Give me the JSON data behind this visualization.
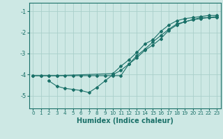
{
  "xlabel": "Humidex (Indice chaleur)",
  "ylabel": "",
  "bg_color": "#cde8e4",
  "grid_color": "#aacfca",
  "line_color": "#1a7068",
  "xlim": [
    -0.5,
    23.5
  ],
  "ylim": [
    -5.6,
    -0.6
  ],
  "xticks": [
    0,
    1,
    2,
    3,
    4,
    5,
    6,
    7,
    8,
    9,
    10,
    11,
    12,
    13,
    14,
    15,
    16,
    17,
    18,
    19,
    20,
    21,
    22,
    23
  ],
  "yticks": [
    -5,
    -4,
    -3,
    -2,
    -1
  ],
  "line1_x": [
    0,
    1,
    2,
    3,
    4,
    5,
    6,
    7,
    8,
    9,
    10,
    11,
    12,
    13,
    14,
    15,
    16,
    17,
    18,
    19,
    20,
    21,
    22,
    23
  ],
  "line1_y": [
    -4.05,
    -4.05,
    -4.05,
    -4.05,
    -4.05,
    -4.05,
    -4.05,
    -4.05,
    -4.05,
    -4.05,
    -4.05,
    -4.05,
    -3.5,
    -3.2,
    -2.85,
    -2.6,
    -2.3,
    -1.9,
    -1.65,
    -1.5,
    -1.4,
    -1.3,
    -1.3,
    -1.3
  ],
  "line2_x": [
    2,
    3,
    4,
    5,
    6,
    7,
    8,
    9,
    10,
    11,
    12,
    13,
    14,
    15,
    16,
    17,
    18,
    19,
    20,
    21,
    22,
    23
  ],
  "line2_y": [
    -4.3,
    -4.55,
    -4.65,
    -4.7,
    -4.75,
    -4.85,
    -4.6,
    -4.3,
    -4.0,
    -3.8,
    -3.5,
    -3.1,
    -2.8,
    -2.45,
    -2.15,
    -1.85,
    -1.6,
    -1.5,
    -1.4,
    -1.35,
    -1.3,
    -1.25
  ],
  "line3_x": [
    0,
    1,
    2,
    3,
    10,
    11,
    12,
    13,
    14,
    15,
    16,
    17,
    18,
    19,
    20,
    21,
    22,
    23
  ],
  "line3_y": [
    -4.05,
    -4.05,
    -4.05,
    -4.05,
    -3.95,
    -3.6,
    -3.3,
    -2.95,
    -2.55,
    -2.35,
    -1.95,
    -1.65,
    -1.45,
    -1.35,
    -1.3,
    -1.25,
    -1.2,
    -1.2
  ]
}
